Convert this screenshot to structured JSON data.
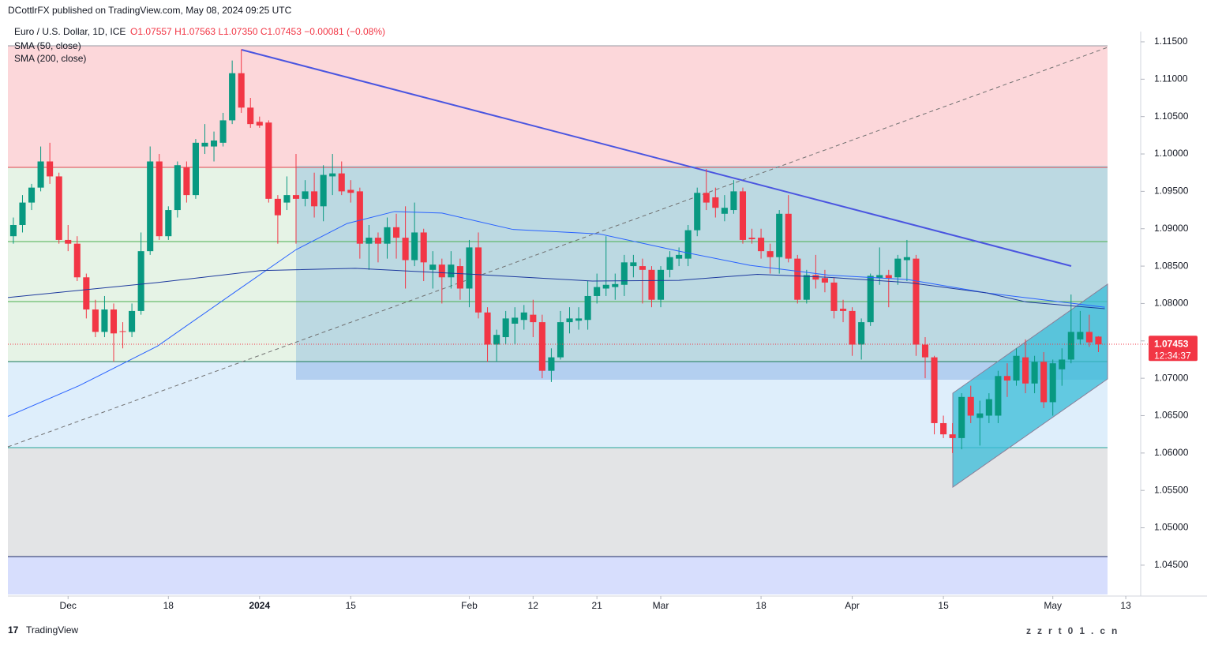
{
  "header": {
    "publisher": "DCottlrFX published on TradingView.com, May 08, 2024 09:25 UTC",
    "symbol": "Euro / U.S. Dollar, 1D, ICE",
    "quote": [
      "O1.07557",
      "H1.07563",
      "L1.07350",
      "C1.07453",
      "−0.00081 (−0.08%)"
    ],
    "brand": "TradingView",
    "watermark": "zzrt01.cn"
  },
  "chart_data": {
    "type": "candlestick",
    "up_color": "#089981",
    "down_color": "#f23645",
    "xlim": [
      -0.6,
      120
    ],
    "ylim": [
      1.04087,
      1.11637
    ],
    "xticks": [
      {
        "value": 6,
        "label": "Dec"
      },
      {
        "value": 17,
        "label": "18"
      },
      {
        "value": 27,
        "label": "2024"
      },
      {
        "value": 37,
        "label": "15"
      },
      {
        "value": 50,
        "label": "Feb"
      },
      {
        "value": 57,
        "label": "12"
      },
      {
        "value": 64,
        "label": "21"
      },
      {
        "value": 71,
        "label": "Mar"
      },
      {
        "value": 82,
        "label": "18"
      },
      {
        "value": 92,
        "label": "Apr"
      },
      {
        "value": 102,
        "label": "15"
      },
      {
        "value": 114,
        "label": "May"
      },
      {
        "value": 122,
        "label": "13"
      }
    ],
    "yticks": [
      {
        "value": 1.115,
        "label": "1.11500"
      },
      {
        "value": 1.11,
        "label": "1.11000"
      },
      {
        "value": 1.105,
        "label": "1.10500"
      },
      {
        "value": 1.1,
        "label": "1.10000"
      },
      {
        "value": 1.095,
        "label": "1.09500"
      },
      {
        "value": 1.09,
        "label": "1.09000"
      },
      {
        "value": 1.085,
        "label": "1.08500"
      },
      {
        "value": 1.08,
        "label": "1.08000"
      },
      {
        "value": 1.075,
        "label": "1.07500"
      },
      {
        "value": 1.07,
        "label": "1.07000"
      },
      {
        "value": 1.065,
        "label": "1.06500"
      },
      {
        "value": 1.06,
        "label": "1.06000"
      },
      {
        "value": 1.055,
        "label": "1.05500"
      },
      {
        "value": 1.05,
        "label": "1.05000"
      },
      {
        "value": 1.045,
        "label": "1.04500"
      }
    ],
    "open": [
      1.089,
      1.0905,
      1.0935,
      1.0955,
      1.099,
      1.097,
      1.0885,
      1.088,
      1.0835,
      1.0792,
      1.0762,
      1.0792,
      1.0763,
      1.0762,
      1.079,
      1.087,
      1.099,
      1.089,
      1.0925,
      1.0982,
      1.0945,
      1.101,
      1.101,
      1.1015,
      1.1045,
      1.1108,
      1.1062,
      1.1043,
      1.1042,
      1.094,
      1.0935,
      1.0945,
      1.094,
      1.095,
      1.093,
      1.097,
      1.0974,
      1.0952,
      1.095,
      1.088,
      1.0888,
      1.088,
      1.0902,
      1.0888,
      1.0858,
      1.0895,
      1.0845,
      1.0852,
      1.0835,
      1.085,
      1.082,
      1.0875,
      1.0788,
      1.0745,
      1.0755,
      1.0773,
      1.0778,
      1.0785,
      1.0775,
      1.071,
      1.0728,
      1.0775,
      1.0777,
      1.0778,
      1.081,
      1.082,
      1.0822,
      1.0825,
      1.085,
      1.085,
      1.0845,
      1.0805,
      1.0845,
      1.086,
      1.086,
      1.0898,
      1.0948,
      1.0942,
      1.092,
      1.0925,
      1.095,
      1.0888,
      1.0888,
      1.087,
      1.0862,
      1.092,
      1.086,
      1.0805,
      1.0838,
      1.0834,
      1.0828,
      1.0793,
      1.079,
      1.0745,
      1.0775,
      1.0834,
      1.0838,
      1.0835,
      1.0858,
      1.086,
      1.0745,
      1.0728,
      1.064,
      1.0625,
      1.062,
      1.0675,
      1.0647,
      1.065,
      1.065,
      1.0703,
      1.0697,
      1.0728,
      1.0693,
      1.0722,
      1.0668,
      1.0712,
      1.0725,
      1.0752,
      1.0762,
      1.07557
    ],
    "high": [
      1.0915,
      1.0945,
      1.096,
      1.101,
      1.1015,
      1.0975,
      1.0905,
      1.089,
      1.084,
      1.0805,
      1.081,
      1.08,
      1.0775,
      1.08,
      1.0895,
      1.101,
      1.1,
      1.093,
      1.099,
      1.099,
      1.102,
      1.104,
      1.103,
      1.1055,
      1.1125,
      1.114,
      1.1075,
      1.105,
      1.1045,
      1.0945,
      1.097,
      1.1,
      1.0965,
      1.0975,
      1.0985,
      1.1,
      1.099,
      1.0965,
      1.0955,
      1.0905,
      1.0895,
      1.0915,
      1.092,
      1.093,
      1.0935,
      1.09,
      1.087,
      1.086,
      1.087,
      1.086,
      1.0885,
      1.0895,
      1.0795,
      1.0765,
      1.079,
      1.0795,
      1.0798,
      1.0805,
      1.0785,
      1.074,
      1.079,
      1.0795,
      1.0795,
      1.083,
      1.084,
      1.089,
      1.084,
      1.0865,
      1.0865,
      1.086,
      1.085,
      1.085,
      1.087,
      1.0875,
      1.0905,
      1.0955,
      1.098,
      1.0955,
      1.0945,
      1.0965,
      1.0955,
      1.09,
      1.09,
      1.088,
      1.0925,
      1.0945,
      1.0865,
      1.0845,
      1.0865,
      1.0845,
      1.0835,
      1.0805,
      1.0795,
      1.078,
      1.084,
      1.0875,
      1.0845,
      1.0865,
      1.0885,
      1.0865,
      1.0755,
      1.073,
      1.065,
      1.064,
      1.068,
      1.069,
      1.067,
      1.068,
      1.071,
      1.072,
      1.074,
      1.0752,
      1.073,
      1.0735,
      1.0725,
      1.074,
      1.0812,
      1.079,
      1.0785,
      1.07563
    ],
    "low": [
      1.088,
      1.0895,
      1.0925,
      1.095,
      1.096,
      1.088,
      1.087,
      1.083,
      1.078,
      1.0755,
      1.0755,
      1.0722,
      1.074,
      1.0755,
      1.0785,
      1.0865,
      1.0885,
      1.0885,
      1.0915,
      1.0935,
      1.094,
      1.1,
      1.099,
      1.101,
      1.104,
      1.1055,
      1.1035,
      1.1035,
      1.0935,
      1.088,
      1.0925,
      1.088,
      1.093,
      1.0915,
      1.091,
      1.0945,
      1.0945,
      1.0935,
      1.086,
      1.0845,
      1.0855,
      1.086,
      1.086,
      1.082,
      1.085,
      1.083,
      1.082,
      1.08,
      1.082,
      1.0805,
      1.0795,
      1.078,
      1.0722,
      1.0722,
      1.0745,
      1.0745,
      1.0765,
      1.0755,
      1.07,
      1.0695,
      1.0725,
      1.076,
      1.0765,
      1.0765,
      1.08,
      1.081,
      1.0805,
      1.081,
      1.0835,
      1.08,
      1.0795,
      1.0795,
      1.0835,
      1.085,
      1.085,
      1.089,
      1.0925,
      1.0915,
      1.091,
      1.092,
      1.088,
      1.088,
      1.086,
      1.084,
      1.084,
      1.0855,
      1.08,
      1.08,
      1.082,
      1.0815,
      1.078,
      1.0775,
      1.073,
      1.0725,
      1.077,
      1.0825,
      1.0795,
      1.0825,
      1.083,
      1.073,
      1.07,
      1.0625,
      1.062,
      1.06,
      1.0605,
      1.064,
      1.061,
      1.064,
      1.064,
      1.0675,
      1.069,
      1.068,
      1.068,
      1.066,
      1.065,
      1.069,
      1.072,
      1.0745,
      1.0742,
      1.0735
    ],
    "close": [
      1.0905,
      1.0935,
      1.0955,
      1.099,
      1.097,
      1.0885,
      1.088,
      1.0835,
      1.0792,
      1.0762,
      1.0792,
      1.076,
      1.0762,
      1.079,
      1.087,
      1.099,
      1.089,
      1.0925,
      1.0985,
      1.0945,
      1.1015,
      1.1015,
      1.1018,
      1.1045,
      1.1108,
      1.1062,
      1.104,
      1.1038,
      1.094,
      1.0918,
      1.0945,
      1.094,
      1.095,
      1.093,
      1.0972,
      1.0974,
      1.095,
      1.0948,
      1.088,
      1.0888,
      1.088,
      1.0902,
      1.0888,
      1.0858,
      1.0895,
      1.0855,
      1.0852,
      1.0835,
      1.0852,
      1.082,
      1.0875,
      1.0788,
      1.0745,
      1.0758,
      1.078,
      1.0781,
      1.0788,
      1.0775,
      1.071,
      1.0728,
      1.0775,
      1.078,
      1.078,
      1.081,
      1.0822,
      1.0825,
      1.0826,
      1.0855,
      1.0855,
      1.0845,
      1.0805,
      1.0845,
      1.0862,
      1.0865,
      1.0898,
      1.0948,
      1.0935,
      1.0928,
      1.0928,
      1.095,
      1.0885,
      1.0886,
      1.087,
      1.0862,
      1.092,
      1.086,
      1.0805,
      1.0838,
      1.0832,
      1.0828,
      1.079,
      1.079,
      1.0745,
      1.0775,
      1.0837,
      1.0838,
      1.0834,
      1.086,
      1.0862,
      1.0745,
      1.0728,
      1.064,
      1.0625,
      1.062,
      1.0675,
      1.065,
      1.0653,
      1.0672,
      1.0703,
      1.0697,
      1.073,
      1.0693,
      1.0722,
      1.0668,
      1.072,
      1.0725,
      1.0762,
      1.0762,
      1.0748,
      1.07453
    ],
    "series": [
      {
        "name": "SMA (50, close)",
        "color": "#2962ff",
        "x": [
          -0.6,
          7.2,
          15.8,
          24.5,
          31,
          36.6,
          41.8,
          47,
          54.8,
          64.3,
          73,
          80.8,
          89.4,
          98.1,
          106.8,
          119.7
        ],
        "values": [
          1.0649,
          1.069,
          1.0743,
          1.0817,
          1.0872,
          1.0907,
          1.0923,
          1.0921,
          1.0899,
          1.0893,
          1.087,
          1.0851,
          1.0838,
          1.0832,
          1.0814,
          1.0795
        ]
      },
      {
        "name": "SMA (200, close)",
        "color": "#1e3a9e",
        "x": [
          -0.6,
          15.8,
          27.1,
          37.5,
          50.5,
          63.5,
          73,
          81.6,
          89.4,
          98.1,
          106.8,
          111.1,
          119.7
        ],
        "values": [
          1.0808,
          1.0828,
          1.0844,
          1.0847,
          1.0839,
          1.083,
          1.0831,
          1.0839,
          1.0835,
          1.0828,
          1.0814,
          1.0802,
          1.0793
        ]
      }
    ],
    "last_price": 1.07453,
    "countdown": "12:34:37"
  }
}
